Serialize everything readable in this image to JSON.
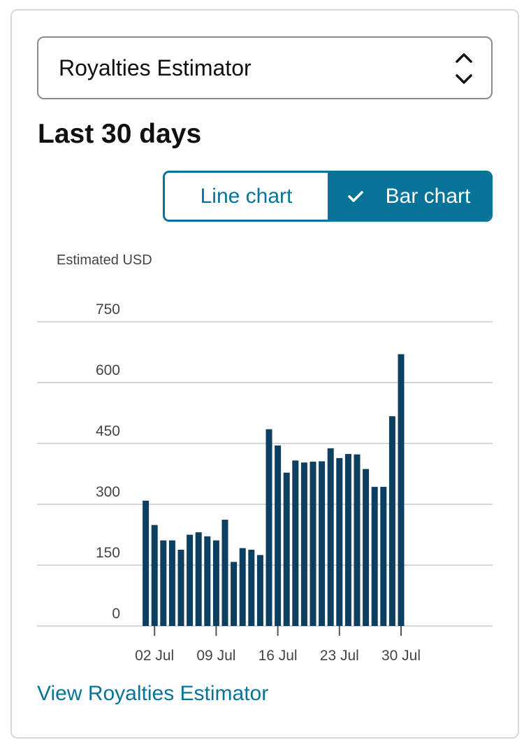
{
  "widget": {
    "select_label": "Royalties Estimator",
    "period_title": "Last 30 days",
    "toggle": {
      "line_label": "Line chart",
      "bar_label": "Bar chart",
      "selected": "Bar chart"
    },
    "link_label": "View Royalties Estimator"
  },
  "colors": {
    "accent": "#077398",
    "bar": "#0d3f60",
    "grid": "#c8c8c8",
    "text": "#0f1111",
    "axis_text": "#444444"
  },
  "icons": {
    "select": "chevron-up-down-icon",
    "toggle_check": "checkmark-icon"
  },
  "chart_data": {
    "type": "bar",
    "ylabel": "Estimated USD",
    "ylim": [
      0,
      750
    ],
    "yticks": [
      0,
      150,
      300,
      450,
      600,
      750
    ],
    "xlim": [
      0,
      40
    ],
    "xticks": [
      {
        "x": 2,
        "label": "02 Jul"
      },
      {
        "x": 9,
        "label": "09 Jul"
      },
      {
        "x": 16,
        "label": "16 Jul"
      },
      {
        "x": 23,
        "label": "23 Jul"
      },
      {
        "x": 30,
        "label": "30 Jul"
      }
    ],
    "grid": true,
    "x": [
      1,
      2,
      3,
      4,
      5,
      6,
      7,
      8,
      9,
      10,
      11,
      12,
      13,
      14,
      15,
      16,
      17,
      18,
      19,
      20,
      21,
      22,
      23,
      24,
      25,
      26,
      27,
      28,
      29,
      30
    ],
    "values": [
      309,
      249,
      211,
      211,
      188,
      225,
      231,
      221,
      211,
      262,
      158,
      192,
      188,
      175,
      485,
      445,
      378,
      408,
      403,
      405,
      406,
      438,
      414,
      424,
      423,
      387,
      343,
      343,
      517,
      670
    ]
  }
}
